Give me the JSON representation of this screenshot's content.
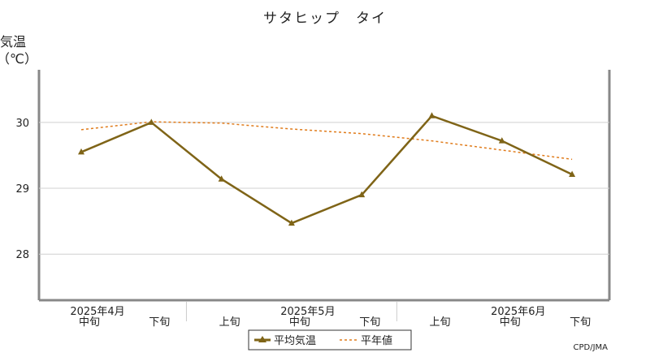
{
  "chart_data": {
    "type": "line",
    "title": "サタヒップ　タイ",
    "ylabel_line1": "気温",
    "ylabel_line2": "（℃）",
    "ylim": [
      27.3,
      30.8
    ],
    "yticks": [
      28,
      29,
      30
    ],
    "categories": [
      "中旬",
      "下旬",
      "上旬",
      "中旬",
      "下旬",
      "上旬",
      "中旬",
      "下旬"
    ],
    "month_labels": [
      {
        "label": "2025年4月",
        "index": 0
      },
      {
        "label": "2025年5月",
        "index": 3
      },
      {
        "label": "2025年6月",
        "index": 6
      }
    ],
    "series": [
      {
        "name": "平均気温",
        "values": [
          29.55,
          30.0,
          29.14,
          28.47,
          28.9,
          30.1,
          29.72,
          29.21
        ],
        "color": "#7f6417",
        "style": "solid",
        "marker": "triangle"
      },
      {
        "name": "平年値",
        "values": [
          29.89,
          30.01,
          29.99,
          29.9,
          29.83,
          29.72,
          29.58,
          29.44
        ],
        "color": "#e07b1a",
        "style": "dashed"
      }
    ],
    "grid": true,
    "legend_position": "bottom-center"
  },
  "credit": "CPD/JMA"
}
